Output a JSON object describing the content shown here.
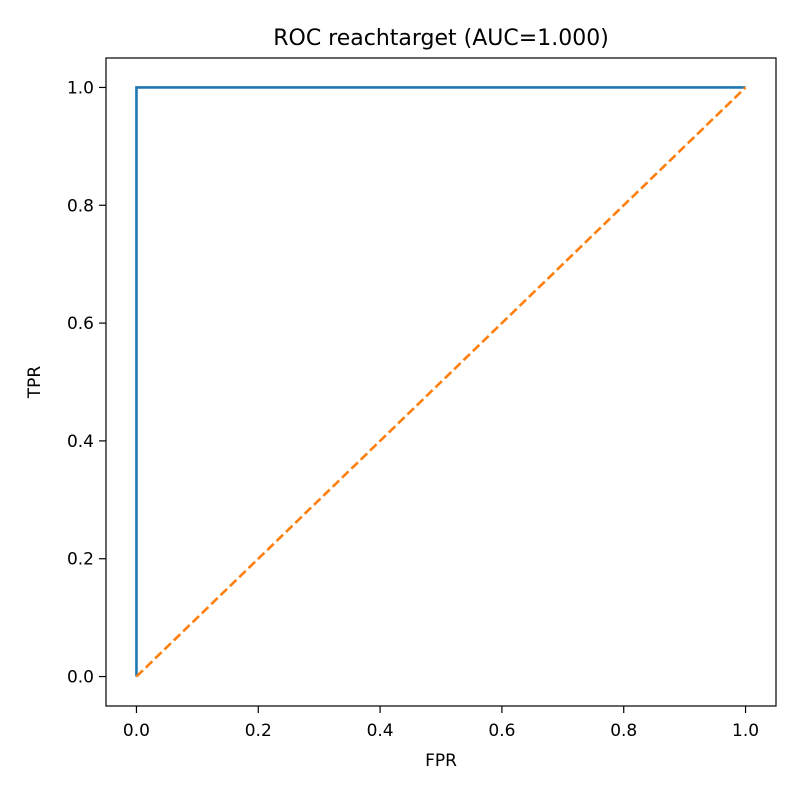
{
  "chart_data": {
    "type": "line",
    "title": "ROC reachtarget (AUC=1.000)",
    "xlabel": "FPR",
    "ylabel": "TPR",
    "xlim": [
      -0.05,
      1.05
    ],
    "ylim": [
      -0.05,
      1.05
    ],
    "xticks": [
      0.0,
      0.2,
      0.4,
      0.6,
      0.8,
      1.0
    ],
    "yticks": [
      0.0,
      0.2,
      0.4,
      0.6,
      0.8,
      1.0
    ],
    "xtick_labels": [
      "0.0",
      "0.2",
      "0.4",
      "0.6",
      "0.8",
      "1.0"
    ],
    "ytick_labels": [
      "0.0",
      "0.2",
      "0.4",
      "0.6",
      "0.8",
      "1.0"
    ],
    "grid": false,
    "legend": false,
    "series": [
      {
        "x": [
          0.0,
          0.0,
          1.0
        ],
        "y": [
          0.0,
          1.0,
          1.0
        ],
        "color": "#1f77b4",
        "style": "solid"
      },
      {
        "x": [
          0.0,
          1.0
        ],
        "y": [
          0.0,
          1.0
        ],
        "color": "#ff7f0e",
        "style": "dashed"
      }
    ]
  }
}
